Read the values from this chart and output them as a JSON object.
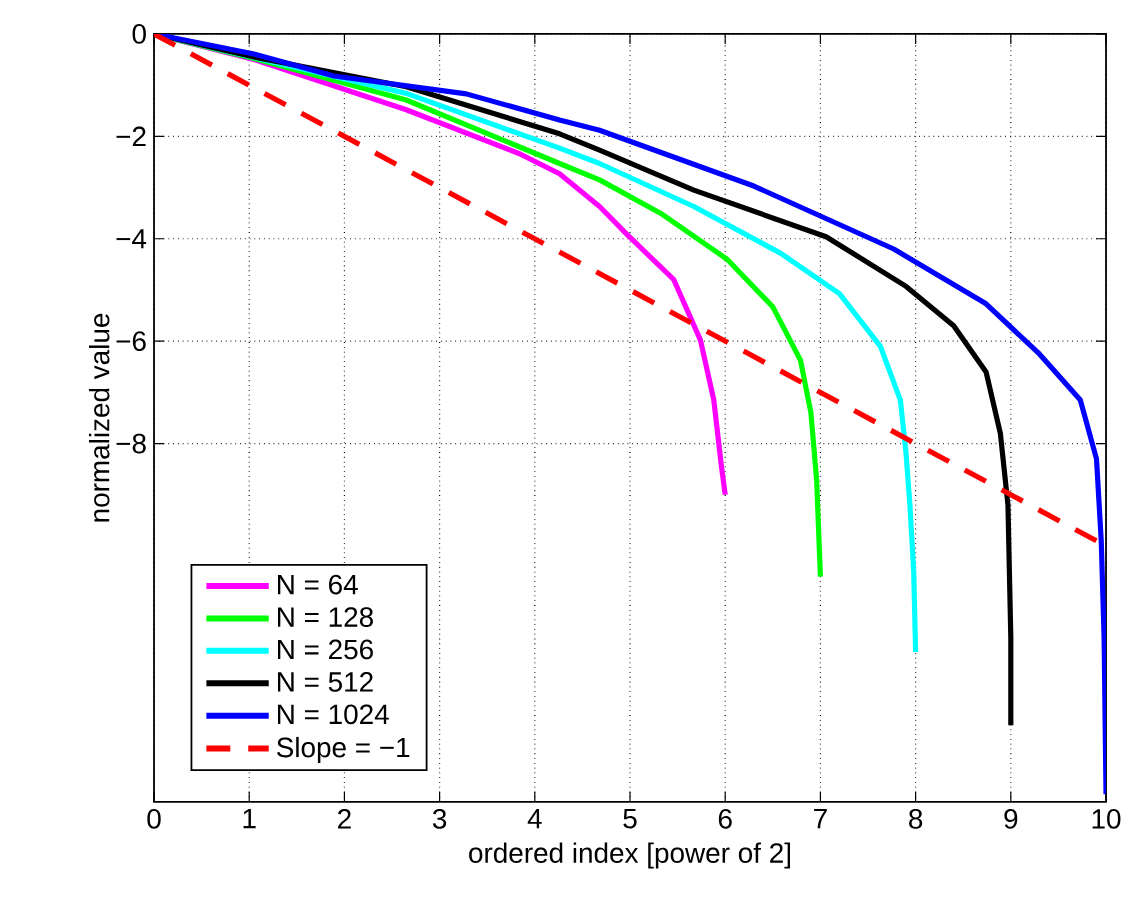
{
  "chart_data": {
    "type": "line",
    "xlabel": "ordered index [power of 2]",
    "ylabel": "normalized value",
    "xlim": [
      0,
      10
    ],
    "ylim": [
      -15,
      0
    ],
    "xticks": [
      0,
      1,
      2,
      3,
      4,
      5,
      6,
      7,
      8,
      9,
      10
    ],
    "yticks": [
      0,
      {
        "value": -2,
        "label": "−2"
      },
      {
        "value": -4,
        "label": "−4"
      },
      {
        "value": -6,
        "label": "−6"
      },
      {
        "value": -8,
        "label": "−8"
      }
    ],
    "grid": true,
    "legend": "bottom left",
    "marker": "none",
    "series": [
      {
        "name": "N = 64",
        "color": "#ff00ff",
        "x": [
          0,
          1.05,
          2.65,
          3.84,
          4.26,
          4.68,
          4.96,
          5.46,
          5.74,
          5.88,
          5.96,
          6
        ],
        "values": [
          0,
          -0.5,
          -1.48,
          -2.34,
          -2.73,
          -3.37,
          -3.9,
          -4.8,
          -5.98,
          -7.15,
          -8.44,
          -9.0
        ]
      },
      {
        "name": "N = 128",
        "color": "#00ff00",
        "x": [
          0,
          1.05,
          2.65,
          4.26,
          4.68,
          5.32,
          6.02,
          6.5,
          6.79,
          6.9,
          6.96,
          7
        ],
        "values": [
          0,
          -0.48,
          -1.29,
          -2.53,
          -2.85,
          -3.5,
          -4.4,
          -5.33,
          -6.37,
          -7.4,
          -8.7,
          -10.6
        ]
      },
      {
        "name": "N = 256",
        "color": "#00ffff",
        "x": [
          0,
          1.05,
          2.65,
          4.26,
          4.68,
          5.67,
          6.58,
          7.2,
          7.63,
          7.84,
          7.9,
          7.94,
          7.98,
          8
        ],
        "values": [
          0,
          -0.46,
          -1.16,
          -2.23,
          -2.53,
          -3.37,
          -4.28,
          -5.07,
          -6.1,
          -7.15,
          -8.2,
          -9.2,
          -10.5,
          -12.07
        ]
      },
      {
        "name": "N = 512",
        "color": "#000000",
        "x": [
          0,
          1.05,
          2.65,
          4.26,
          4.68,
          5.67,
          7.06,
          7.9,
          8.4,
          8.74,
          8.89,
          8.97,
          9,
          9
        ],
        "values": [
          0,
          -0.45,
          -1.03,
          -1.95,
          -2.27,
          -3.05,
          -3.96,
          -4.93,
          -5.7,
          -6.6,
          -7.8,
          -9.2,
          -11.8,
          -13.5
        ]
      },
      {
        "name": "N = 1024",
        "color": "#0000ff",
        "x": [
          0,
          1.05,
          1.89,
          3.28,
          4.26,
          4.68,
          6.3,
          7.77,
          8.74,
          9.3,
          9.73,
          9.9,
          9.95,
          9.98,
          10
        ],
        "values": [
          0,
          -0.39,
          -0.82,
          -1.17,
          -1.68,
          -1.88,
          -2.97,
          -4.2,
          -5.27,
          -6.25,
          -7.15,
          -8.3,
          -9.9,
          -11.8,
          -14.85
        ]
      },
      {
        "name": "Slope = −1",
        "color": "#ff0000",
        "line_style": "dashed",
        "x": [
          0,
          10
        ],
        "values": [
          0,
          -10
        ]
      }
    ]
  }
}
